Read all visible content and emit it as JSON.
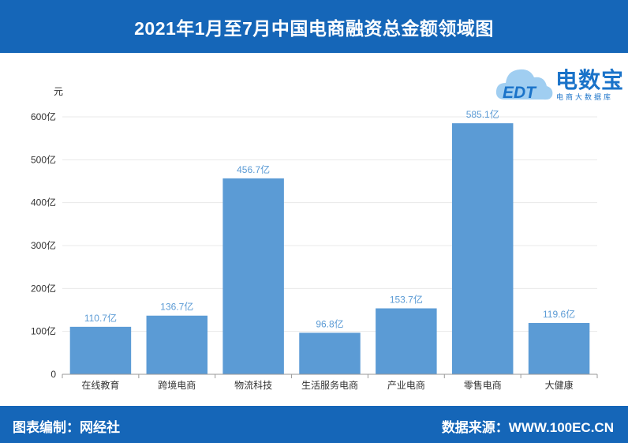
{
  "header": {
    "title": "2021年1月至7月中国电商融资总金额领域图"
  },
  "logo": {
    "name": "电数宝",
    "subtitle": "电商大数据库",
    "mark": "EDT"
  },
  "footer": {
    "editor": "图表编制：网经社",
    "source": "数据来源：WWW.100EC.CN"
  },
  "colors": {
    "bar": "#5b9bd5",
    "header": "#1566b8",
    "label": "#5b9bd5"
  },
  "chart_data": {
    "type": "bar",
    "ylabel": "元",
    "categories": [
      "在线教育",
      "跨境电商",
      "物流科技",
      "生活服务电商",
      "产业电商",
      "零售电商",
      "大健康"
    ],
    "values": [
      110.7,
      136.7,
      456.7,
      96.8,
      153.7,
      585.1,
      119.6
    ],
    "data_labels": [
      "110.7亿",
      "136.7亿",
      "456.7亿",
      "96.8亿",
      "153.7亿",
      "585.1亿",
      "119.6亿"
    ],
    "ylim": [
      0,
      600
    ],
    "yticks": [
      0,
      100,
      200,
      300,
      400,
      500,
      600
    ],
    "ytick_labels": [
      "0",
      "100亿",
      "200亿",
      "300亿",
      "400亿",
      "500亿",
      "600亿"
    ],
    "grid": true,
    "legend": "none"
  }
}
